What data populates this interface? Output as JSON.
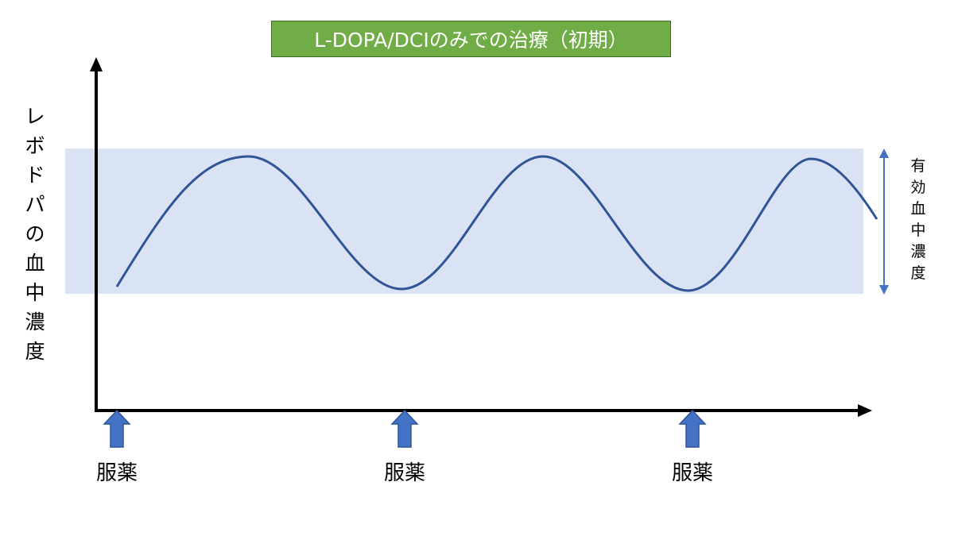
{
  "title": "L-DOPA/DCIのみでの治療（初期）",
  "ylabel": [
    "レ",
    "ボ",
    "ド",
    "パ",
    "の",
    "血",
    "中",
    "濃",
    "度"
  ],
  "effective_range_label": [
    "有",
    "効",
    "血",
    "中",
    "濃",
    "度"
  ],
  "dose_labels": [
    "服薬",
    "服薬",
    "服薬"
  ],
  "colors": {
    "title_bg": "#70ad47",
    "band": "#dae3f3",
    "curve": "#2f5597",
    "arrow": "#4472c4",
    "axis": "#000000"
  }
}
